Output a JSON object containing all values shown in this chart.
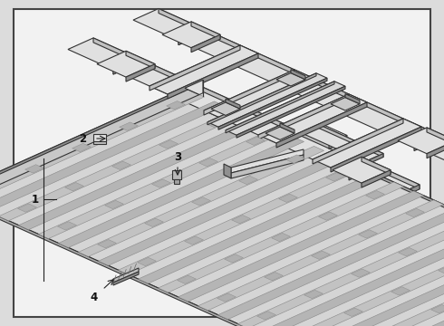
{
  "bg_color": "#dcdcdc",
  "panel_bg": "#f2f2f2",
  "border_color": "#444444",
  "line_color": "#222222",
  "ec": "#333333",
  "light": "#e0e0e0",
  "mid": "#c0c0c0",
  "dark": "#909090",
  "darker": "#707070",
  "white": "#f5f5f5",
  "figsize": [
    4.9,
    3.6
  ],
  "dpi": 100
}
